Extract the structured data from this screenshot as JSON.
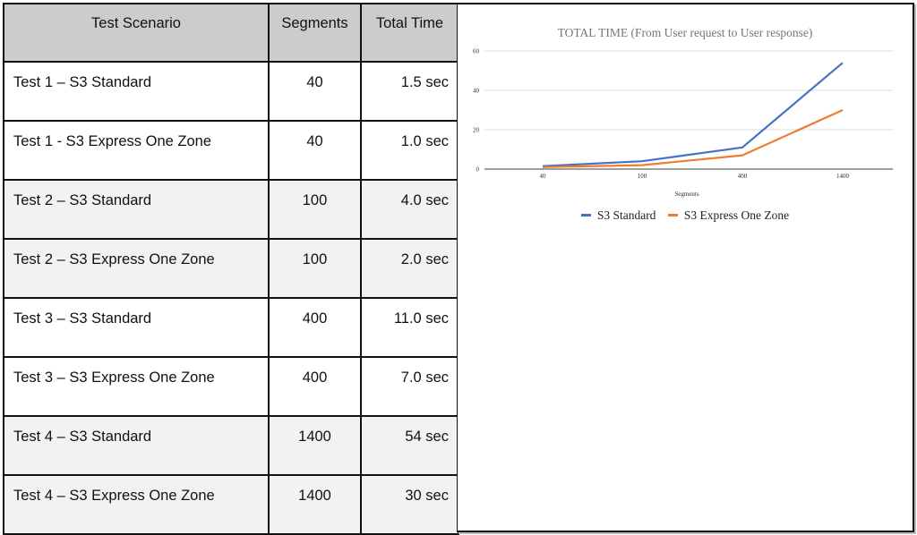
{
  "table": {
    "headers": [
      "Test Scenario",
      "Segments",
      "Total Time"
    ],
    "rows": [
      {
        "scenario": "Test 1 – S3 Standard",
        "segments": "40",
        "time": "1.5 sec"
      },
      {
        "scenario": "Test 1 - S3 Express One Zone",
        "segments": "40",
        "time": "1.0 sec"
      },
      {
        "scenario": "Test 2 – S3 Standard",
        "segments": "100",
        "time": "4.0 sec"
      },
      {
        "scenario": "Test 2 – S3 Express One Zone",
        "segments": "100",
        "time": "2.0 sec"
      },
      {
        "scenario": "Test 3 – S3 Standard",
        "segments": "400",
        "time": "11.0 sec"
      },
      {
        "scenario": "Test 3 – S3 Express One Zone",
        "segments": "400",
        "time": "7.0 sec"
      },
      {
        "scenario": "Test 4 – S3 Standard",
        "segments": "1400",
        "time": "54 sec"
      },
      {
        "scenario": "Test 4 – S3 Express One Zone",
        "segments": "1400",
        "time": "30 sec"
      }
    ]
  },
  "chart_data": {
    "type": "line",
    "title": "TOTAL TIME (From User request to User response)",
    "xlabel": "Segments",
    "ylabel": "",
    "categories": [
      "40",
      "100",
      "400",
      "1400"
    ],
    "series": [
      {
        "name": "S3 Standard",
        "color": "#4472c4",
        "values": [
          1.5,
          4.0,
          11.0,
          54
        ]
      },
      {
        "name": "S3 Express One Zone",
        "color": "#ed7d31",
        "values": [
          1.0,
          2.0,
          7.0,
          30
        ]
      }
    ],
    "yticks": [
      "0",
      "20",
      "40",
      "60"
    ],
    "ylim": [
      0,
      60
    ],
    "grid": true,
    "legend_position": "bottom"
  }
}
